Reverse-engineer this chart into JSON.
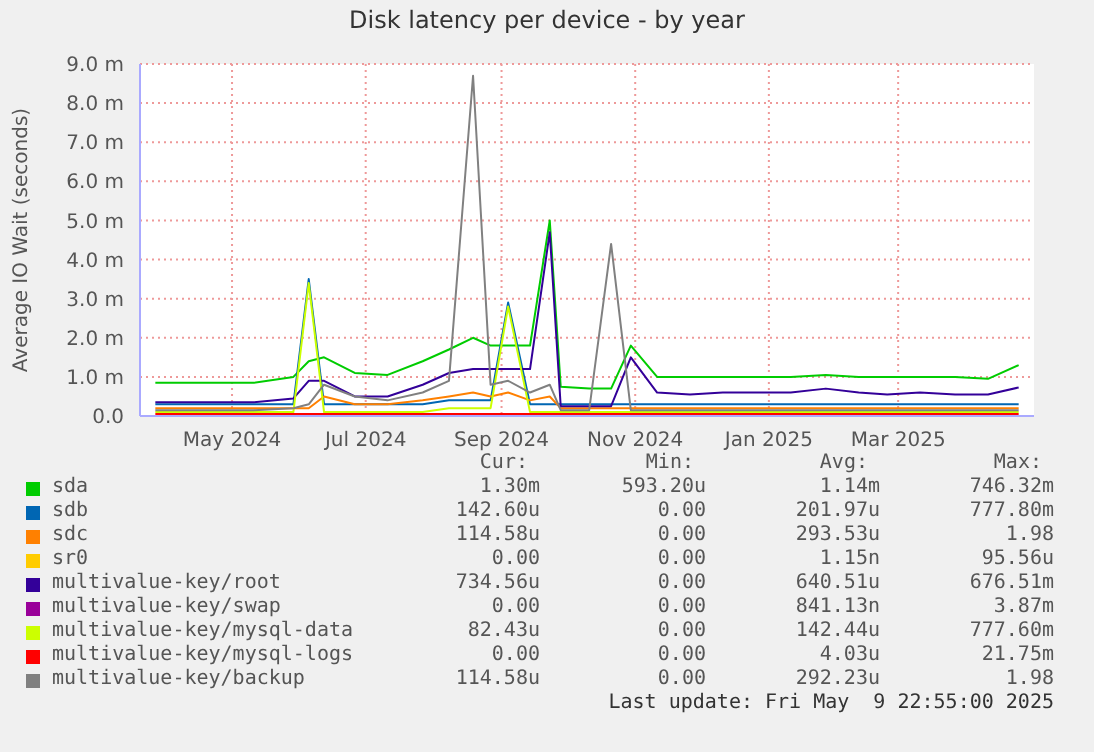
{
  "chart_data": {
    "type": "line",
    "title": "Disk latency per device - by year",
    "ylabel": "Average IO Wait (seconds)",
    "x": [
      "2024-04-10",
      "2024-04-25",
      "2024-05-10",
      "2024-05-25",
      "2024-06-12",
      "2024-06-19",
      "2024-06-26",
      "2024-07-10",
      "2024-07-25",
      "2024-08-10",
      "2024-08-22",
      "2024-09-02",
      "2024-09-10",
      "2024-09-18",
      "2024-09-28",
      "2024-10-07",
      "2024-10-12",
      "2024-10-25",
      "2024-11-04",
      "2024-11-13",
      "2024-11-25",
      "2024-12-10",
      "2024-12-25",
      "2025-01-10",
      "2025-01-25",
      "2025-02-10",
      "2025-02-25",
      "2025-03-10",
      "2025-03-25",
      "2025-04-10",
      "2025-04-25",
      "2025-05-09"
    ],
    "xlim": [
      "2024-04-03",
      "2025-05-16"
    ],
    "xticks": [
      {
        "value": "2024-05-15",
        "label": "May 2024"
      },
      {
        "value": "2024-07-15",
        "label": "Jul 2024"
      },
      {
        "value": "2024-09-15",
        "label": "Sep 2024"
      },
      {
        "value": "2024-11-15",
        "label": "Nov 2024"
      },
      {
        "value": "2025-01-15",
        "label": "Jan 2025"
      },
      {
        "value": "2025-03-15",
        "label": "Mar 2025"
      }
    ],
    "ylim": [
      0,
      9
    ],
    "yticks": [
      {
        "value": 0,
        "label": "0.0"
      },
      {
        "value": 1,
        "label": "1.0 m"
      },
      {
        "value": 2,
        "label": "2.0 m"
      },
      {
        "value": 3,
        "label": "3.0 m"
      },
      {
        "value": 4,
        "label": "4.0 m"
      },
      {
        "value": 5,
        "label": "5.0 m"
      },
      {
        "value": 6,
        "label": "6.0 m"
      },
      {
        "value": 7,
        "label": "7.0 m"
      },
      {
        "value": 8,
        "label": "8.0 m"
      },
      {
        "value": 9,
        "label": "9.0 m"
      }
    ],
    "grid": true,
    "legend": "bottom",
    "marker": "none",
    "line_style": "solid",
    "series": [
      {
        "name": "sda",
        "color": "#00cc00",
        "values": [
          0.85,
          0.85,
          0.85,
          0.85,
          1.0,
          1.4,
          1.5,
          1.1,
          1.05,
          1.4,
          1.7,
          2.0,
          1.8,
          1.8,
          1.8,
          5.0,
          0.75,
          0.7,
          0.7,
          1.8,
          1.0,
          1.0,
          1.0,
          1.0,
          1.0,
          1.05,
          1.0,
          1.0,
          1.0,
          1.0,
          0.95,
          1.3
        ]
      },
      {
        "name": "sdb",
        "color": "#0066b3",
        "values": [
          0.3,
          0.3,
          0.3,
          0.3,
          0.3,
          3.5,
          0.3,
          0.3,
          0.3,
          0.3,
          0.4,
          0.4,
          0.4,
          2.9,
          0.3,
          0.3,
          0.3,
          0.3,
          0.3,
          0.3,
          0.3,
          0.3,
          0.3,
          0.3,
          0.3,
          0.3,
          0.3,
          0.3,
          0.3,
          0.3,
          0.3,
          0.3
        ]
      },
      {
        "name": "sdc",
        "color": "#ff8000",
        "values": [
          0.2,
          0.2,
          0.2,
          0.2,
          0.2,
          0.2,
          0.5,
          0.3,
          0.3,
          0.4,
          0.5,
          0.6,
          0.5,
          0.6,
          0.4,
          0.5,
          0.2,
          0.2,
          0.2,
          0.2,
          0.2,
          0.2,
          0.2,
          0.2,
          0.2,
          0.2,
          0.2,
          0.2,
          0.2,
          0.2,
          0.2,
          0.2
        ]
      },
      {
        "name": "sr0",
        "color": "#ffcc00",
        "values": [
          null,
          null,
          null,
          null,
          null,
          null,
          null,
          null,
          null,
          null,
          null,
          null,
          null,
          null,
          null,
          null,
          null,
          null,
          null,
          null,
          null,
          null,
          null,
          null,
          null,
          null,
          null,
          null,
          null,
          null,
          null,
          null
        ]
      },
      {
        "name": "multivalue-key/root",
        "color": "#330099",
        "values": [
          0.35,
          0.35,
          0.35,
          0.35,
          0.45,
          0.9,
          0.9,
          0.5,
          0.5,
          0.8,
          1.1,
          1.2,
          1.2,
          1.2,
          1.2,
          4.7,
          0.25,
          0.25,
          0.25,
          1.5,
          0.6,
          0.55,
          0.6,
          0.6,
          0.6,
          0.7,
          0.6,
          0.55,
          0.6,
          0.55,
          0.55,
          0.73
        ]
      },
      {
        "name": "multivalue-key/swap",
        "color": "#990099",
        "values": [
          null,
          null,
          null,
          null,
          null,
          null,
          null,
          null,
          null,
          null,
          null,
          null,
          null,
          null,
          null,
          null,
          null,
          null,
          null,
          null,
          null,
          null,
          null,
          null,
          null,
          null,
          null,
          null,
          null,
          null,
          null,
          null
        ]
      },
      {
        "name": "multivalue-key/mysql-data",
        "color": "#ccff00",
        "values": [
          0.1,
          0.1,
          0.1,
          0.1,
          0.1,
          3.4,
          0.1,
          0.1,
          0.1,
          0.1,
          0.2,
          0.2,
          0.2,
          2.8,
          0.1,
          0.1,
          0.1,
          0.1,
          0.1,
          0.1,
          0.1,
          0.1,
          0.1,
          0.1,
          0.1,
          0.1,
          0.1,
          0.1,
          0.1,
          0.1,
          0.1,
          0.1
        ]
      },
      {
        "name": "multivalue-key/mysql-logs",
        "color": "#ff0000",
        "values": [
          0.05,
          0.05,
          0.05,
          0.05,
          0.05,
          0.05,
          0.05,
          0.05,
          0.05,
          0.05,
          0.05,
          0.05,
          0.05,
          0.05,
          0.05,
          0.05,
          0.05,
          0.05,
          0.05,
          0.05,
          0.05,
          0.05,
          0.05,
          0.05,
          0.05,
          0.05,
          0.05,
          0.05,
          0.05,
          0.05,
          0.05,
          0.05
        ]
      },
      {
        "name": "multivalue-key/backup",
        "color": "#808080",
        "values": [
          0.15,
          0.15,
          0.15,
          0.15,
          0.2,
          0.3,
          0.8,
          0.5,
          0.4,
          0.6,
          0.9,
          8.7,
          0.8,
          0.9,
          0.6,
          0.8,
          0.15,
          0.15,
          4.4,
          0.15,
          0.15,
          0.15,
          0.15,
          0.15,
          0.15,
          0.15,
          0.15,
          0.15,
          0.15,
          0.15,
          0.15,
          0.15
        ]
      }
    ],
    "annotations": [
      "Cur:",
      "Min:",
      "Avg:",
      "Max:",
      "1.30m",
      "593.20u",
      "1.14m",
      "746.32m",
      "142.60u",
      "0.00",
      "201.97u",
      "777.80m",
      "114.58u",
      "0.00",
      "293.53u",
      "1.98",
      "0.00",
      "0.00",
      "1.15n",
      "95.56u",
      "734.56u",
      "0.00",
      "640.51u",
      "676.51m",
      "0.00",
      "0.00",
      "841.13n",
      "3.87m",
      "82.43u",
      "0.00",
      "142.44u",
      "777.60m",
      "0.00",
      "0.00",
      "4.03u",
      "21.75m",
      "114.58u",
      "0.00",
      "292.23u",
      "1.98",
      "Last update: Fri May  9 22:55:00 2025"
    ]
  }
}
